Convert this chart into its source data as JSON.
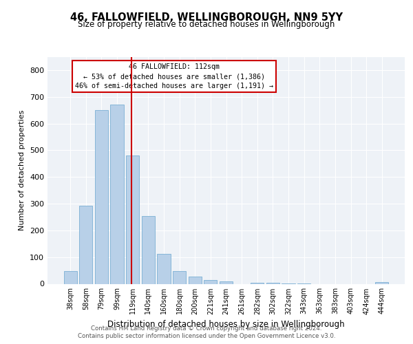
{
  "title": "46, FALLOWFIELD, WELLINGBOROUGH, NN9 5YY",
  "subtitle": "Size of property relative to detached houses in Wellingborough",
  "xlabel": "Distribution of detached houses by size in Wellingborough",
  "ylabel": "Number of detached properties",
  "bar_labels": [
    "38sqm",
    "58sqm",
    "79sqm",
    "99sqm",
    "119sqm",
    "140sqm",
    "160sqm",
    "180sqm",
    "200sqm",
    "221sqm",
    "241sqm",
    "261sqm",
    "282sqm",
    "302sqm",
    "322sqm",
    "343sqm",
    "363sqm",
    "383sqm",
    "403sqm",
    "424sqm",
    "444sqm"
  ],
  "bar_values": [
    48,
    293,
    651,
    672,
    480,
    253,
    113,
    48,
    28,
    15,
    10,
    0,
    5,
    3,
    2,
    1,
    0,
    0,
    0,
    0,
    7
  ],
  "bar_color": "#b8d0e8",
  "bar_edge_color": "#7aafd4",
  "highlight_line_color": "#cc0000",
  "highlight_line_xval": 3.93,
  "annotation_title": "46 FALLOWFIELD: 112sqm",
  "annotation_line1": "← 53% of detached houses are smaller (1,386)",
  "annotation_line2": "46% of semi-detached houses are larger (1,191) →",
  "annotation_box_color": "#cc0000",
  "ylim": [
    0,
    850
  ],
  "yticks": [
    0,
    100,
    200,
    300,
    400,
    500,
    600,
    700,
    800
  ],
  "background_color": "#eef2f7",
  "grid_color": "#ffffff",
  "footer_line1": "Contains HM Land Registry data © Crown copyright and database right 2024.",
  "footer_line2": "Contains public sector information licensed under the Open Government Licence v3.0."
}
